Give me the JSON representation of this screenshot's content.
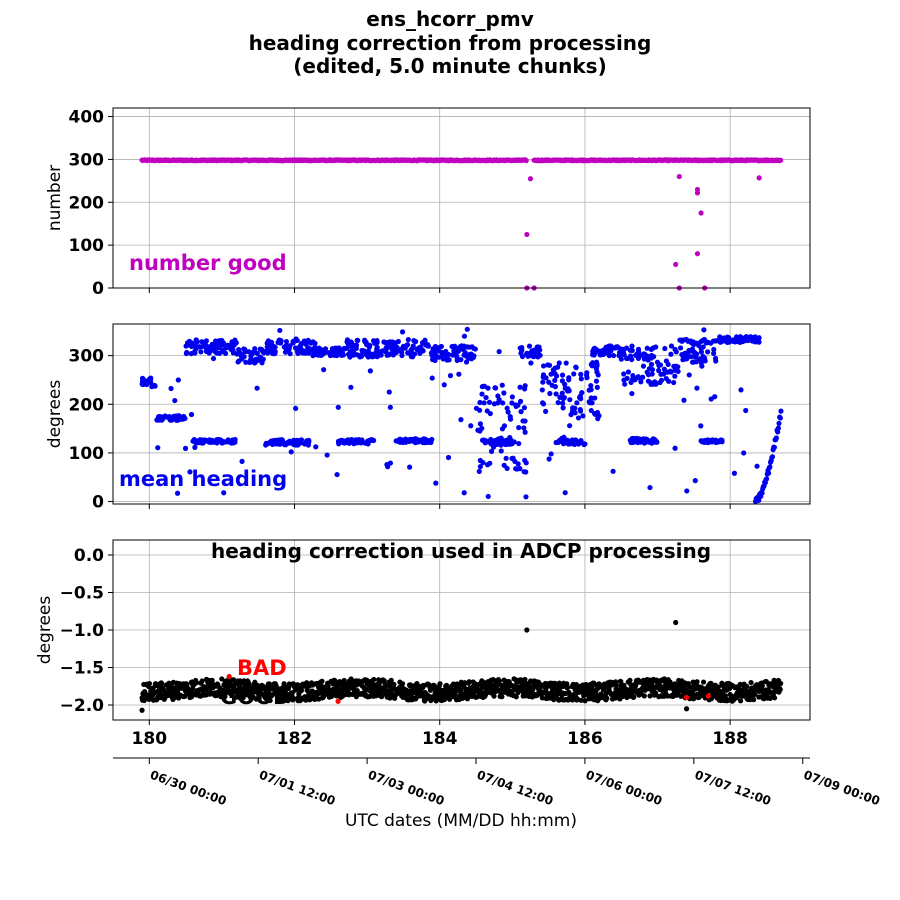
{
  "figure": {
    "title_lines": [
      "ens_hcorr_pmv",
      "heading correction from processing",
      "(edited, 5.0 minute chunks)"
    ]
  },
  "chart_data": [
    {
      "type": "scatter",
      "ylabel": "number",
      "ylim": [
        0,
        420
      ],
      "xlim": [
        179.5,
        189.1
      ],
      "yticks": [
        0,
        100,
        200,
        300,
        400
      ],
      "grid": true,
      "annotation": {
        "text": "number good",
        "color": "#bf00bf"
      },
      "marker_color": "#bf00bf",
      "series": [
        {
          "baseline": {
            "x_start": 179.9,
            "x_end": 188.7,
            "y": 298,
            "gap": [
              185.2,
              185.3
            ]
          },
          "points": [
            [
              185.2,
              125
            ],
            [
              185.25,
              255
            ],
            [
              185.2,
              0
            ],
            [
              185.3,
              0
            ],
            [
              187.25,
              55
            ],
            [
              187.3,
              260
            ],
            [
              187.3,
              0
            ],
            [
              187.55,
              230
            ],
            [
              187.55,
              222
            ],
            [
              187.6,
              175
            ],
            [
              187.55,
              80
            ],
            [
              187.65,
              0
            ],
            [
              188.4,
              257
            ]
          ]
        }
      ]
    },
    {
      "type": "scatter",
      "ylabel": "degrees",
      "ylim": [
        -5,
        365
      ],
      "xlim": [
        179.5,
        189.1
      ],
      "yticks": [
        0,
        100,
        200,
        300
      ],
      "grid": true,
      "annotation": {
        "text": "mean heading",
        "color": "#0000ee"
      },
      "marker_color": "#0000ee",
      "series": [
        {
          "segments": [
            {
              "x": [
                179.9,
                180.1
              ],
              "y": 245,
              "spread": 10
            },
            {
              "x": [
                180.1,
                180.5
              ],
              "y": 172,
              "spread": 5
            },
            {
              "x": [
                180.5,
                181.2
              ],
              "y": 318,
              "spread": 15
            },
            {
              "x": [
                180.6,
                181.2
              ],
              "y": 124,
              "spread": 4
            },
            {
              "x": [
                181.2,
                181.6
              ],
              "y": 300,
              "spread": 15
            },
            {
              "x": [
                181.6,
                182.3
              ],
              "y": 318,
              "spread": 14
            },
            {
              "x": [
                181.6,
                182.2
              ],
              "y": 122,
              "spread": 6
            },
            {
              "x": [
                182.2,
                182.7
              ],
              "y": 308,
              "spread": 8
            },
            {
              "x": [
                182.7,
                183.3
              ],
              "y": 315,
              "spread": 18
            },
            {
              "x": [
                182.6,
                183.1
              ],
              "y": 123,
              "spread": 5
            },
            {
              "x": [
                183.3,
                183.9
              ],
              "y": 315,
              "spread": 18
            },
            {
              "x": [
                183.4,
                183.9
              ],
              "y": 125,
              "spread": 4
            },
            {
              "x": [
                183.9,
                184.5
              ],
              "y": 305,
              "spread": 15
            },
            {
              "x": [
                184.5,
                185.2
              ],
              "y": 150,
              "spread": 90
            },
            {
              "x": [
                184.6,
                185.0
              ],
              "y": 122,
              "spread": 6
            },
            {
              "x": [
                185.1,
                185.4
              ],
              "y": 308,
              "spread": 12
            },
            {
              "x": [
                185.4,
                186.2
              ],
              "y": 230,
              "spread": 60
            },
            {
              "x": [
                185.6,
                186.0
              ],
              "y": 122,
              "spread": 5
            },
            {
              "x": [
                186.1,
                186.5
              ],
              "y": 310,
              "spread": 10
            },
            {
              "x": [
                186.5,
                187.3
              ],
              "y": 280,
              "spread": 40
            },
            {
              "x": [
                186.6,
                187.0
              ],
              "y": 125,
              "spread": 5
            },
            {
              "x": [
                187.3,
                187.8
              ],
              "y": 310,
              "spread": 25
            },
            {
              "x": [
                187.6,
                187.9
              ],
              "y": 124,
              "spread": 3
            },
            {
              "x": [
                187.8,
                188.4
              ],
              "y": 333,
              "spread": 6
            }
          ],
          "ramp": {
            "x": [
              188.35,
              188.7
            ],
            "y": [
              0,
              185
            ]
          },
          "scatter_x": [
            179.9,
            188.4
          ]
        }
      ]
    },
    {
      "type": "scatter",
      "title": "heading correction used in ADCP processing",
      "ylabel": "degrees",
      "ylim": [
        -2.2,
        0.2
      ],
      "xlim": [
        179.5,
        189.1
      ],
      "yticks": [
        0.0,
        -0.5,
        -1.0,
        -1.5,
        -2.0
      ],
      "ytick_labels": [
        "0.0",
        "−0.5",
        "−1.0",
        "−1.5",
        "−2.0"
      ],
      "xticks": [
        180,
        182,
        184,
        186,
        188
      ],
      "xlabel": "UTC dates (MM/DD hh:mm)",
      "date_ticks": [
        {
          "x": 180.0,
          "label": "06/30 00:00"
        },
        {
          "x": 181.5,
          "label": "07/01 12:00"
        },
        {
          "x": 183.0,
          "label": "07/03 00:00"
        },
        {
          "x": 184.5,
          "label": "07/04 12:00"
        },
        {
          "x": 186.0,
          "label": "07/06 00:00"
        },
        {
          "x": 187.5,
          "label": "07/07 12:00"
        },
        {
          "x": 189.0,
          "label": "07/09 00:00"
        }
      ],
      "grid": true,
      "legend_labels": {
        "bad": "BAD",
        "good": "GOOD"
      },
      "bad_color": "#ff0000",
      "good_color": "#000000",
      "series": [
        {
          "name": "GOOD",
          "x_range": [
            179.9,
            188.7
          ],
          "y_mean": -1.8,
          "y_spread": 0.12,
          "outliers": [
            [
              185.2,
              -1.0
            ],
            [
              187.25,
              -0.9
            ],
            [
              179.9,
              -2.07
            ],
            [
              187.4,
              -2.05
            ]
          ]
        }
      ]
    }
  ]
}
